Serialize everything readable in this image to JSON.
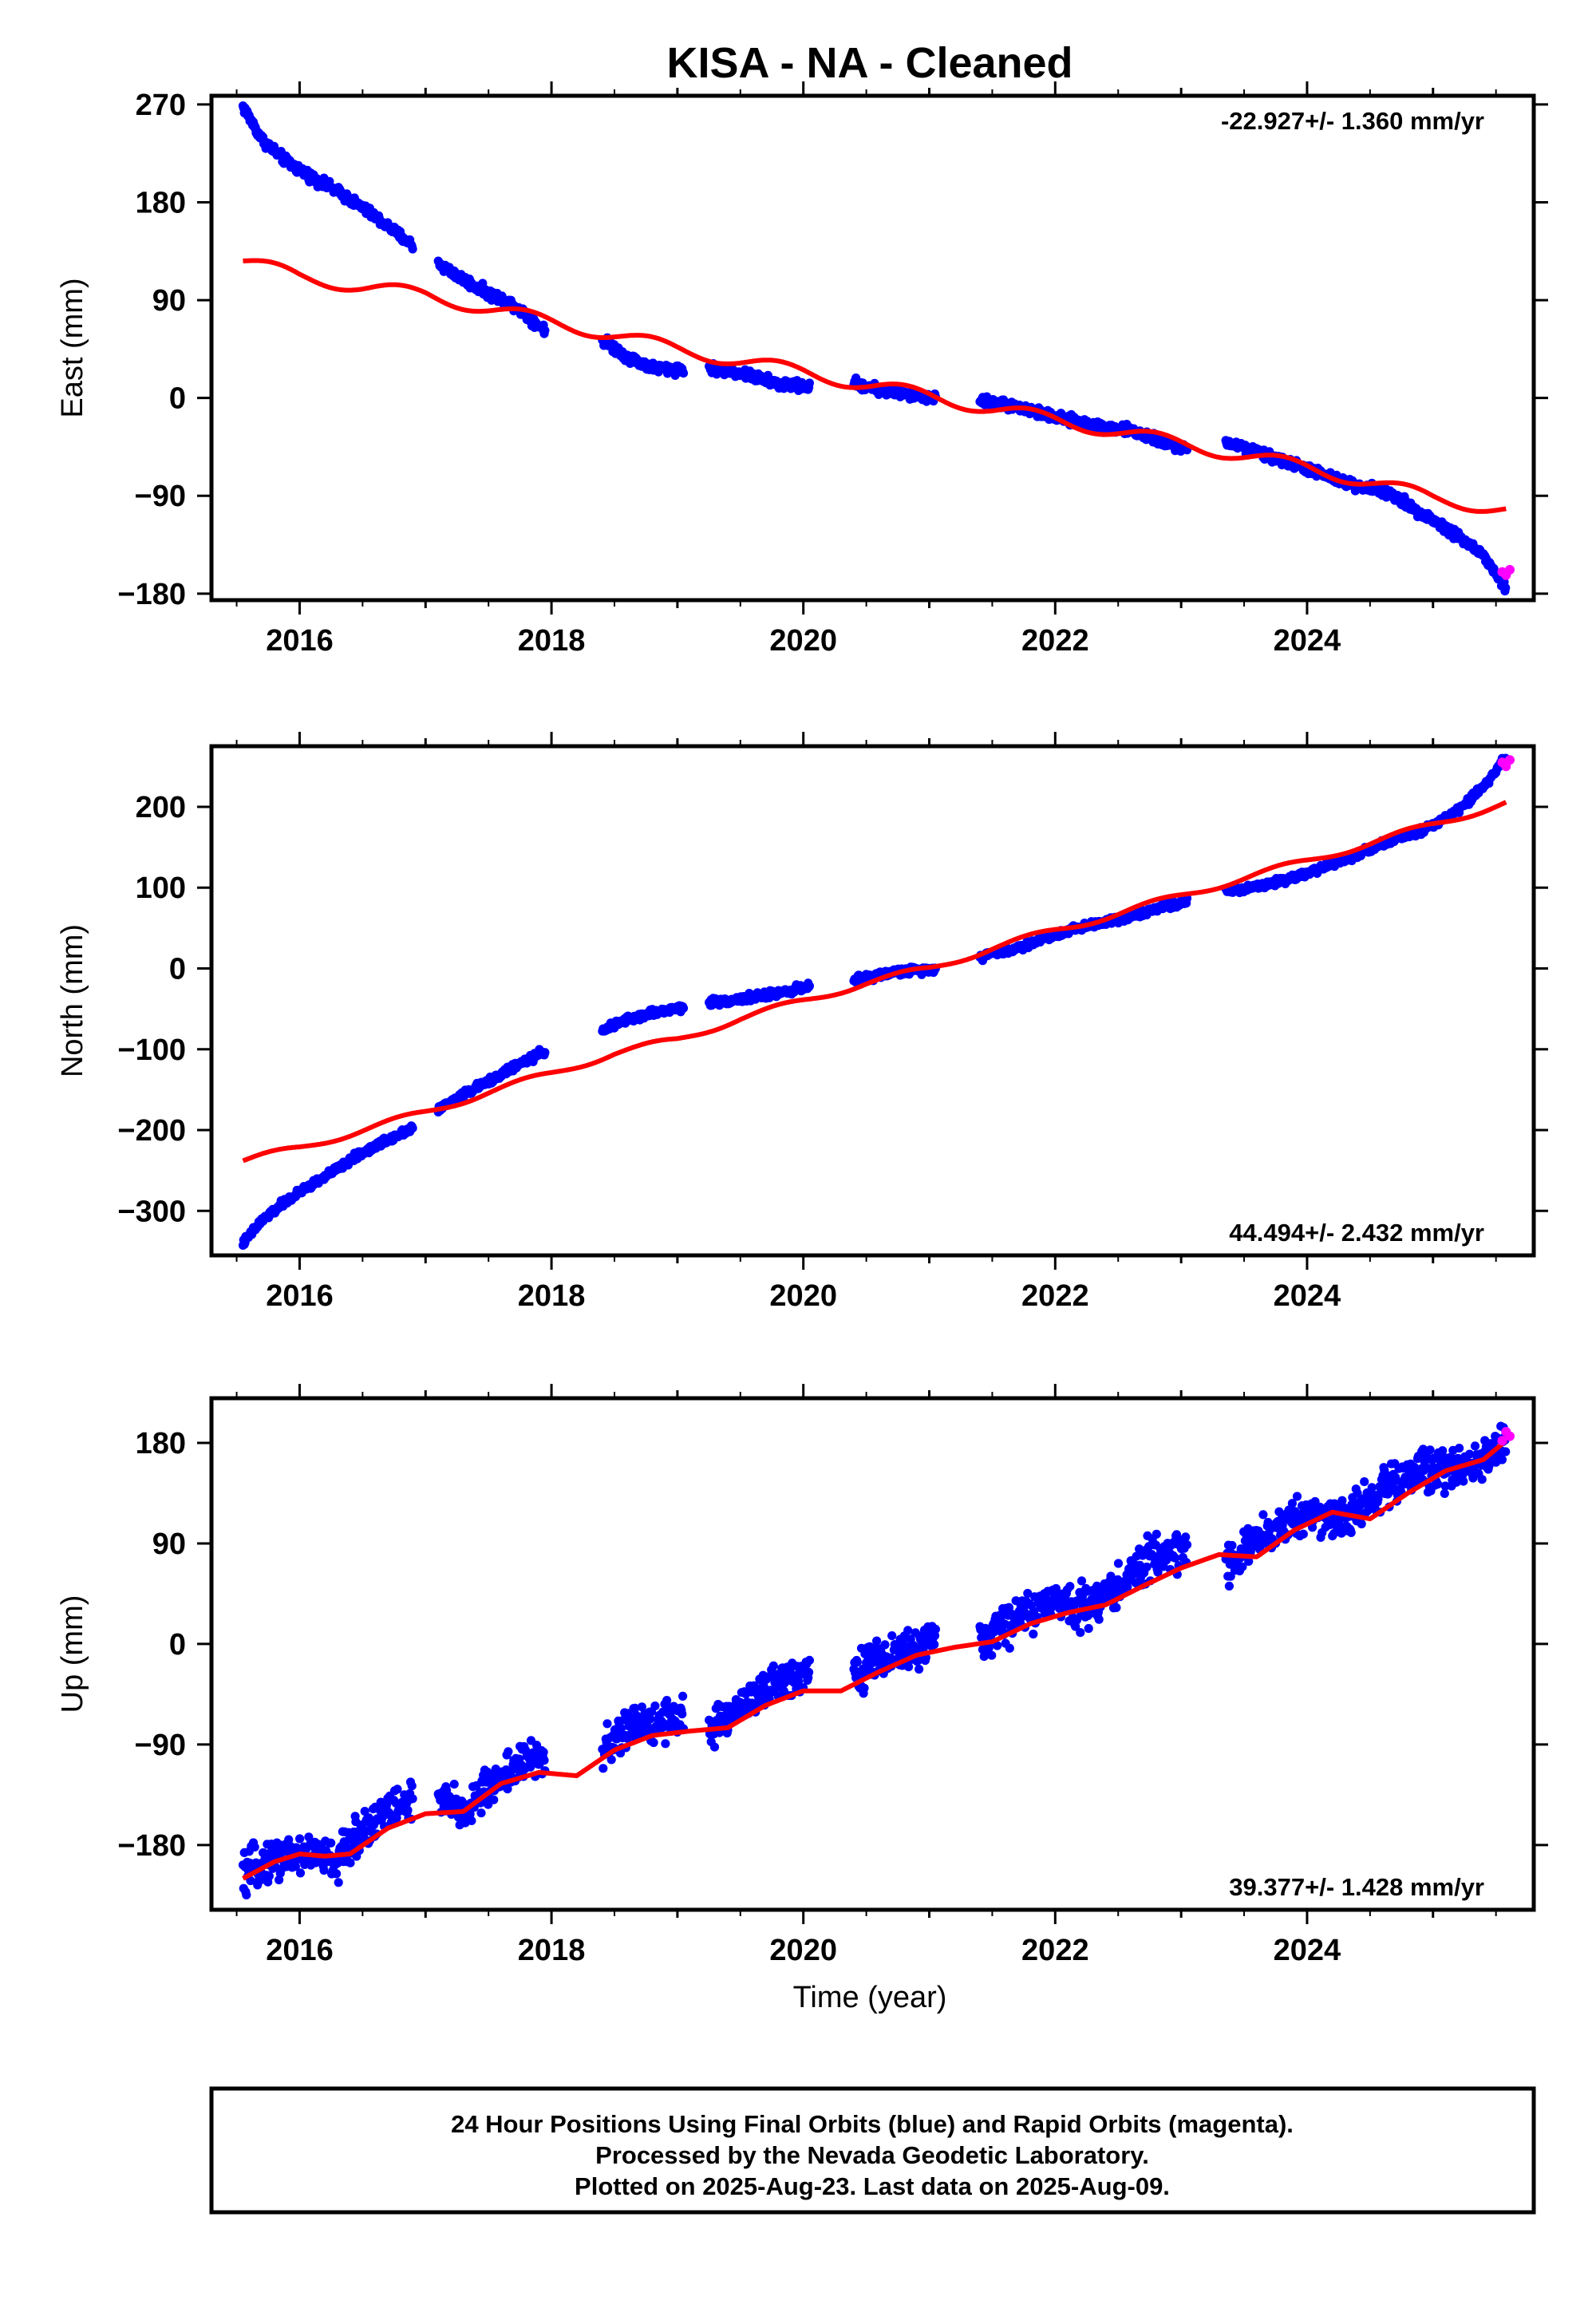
{
  "title": "KISA  - NA - Cleaned",
  "xlabel": "Time (year)",
  "footer": {
    "line1": "24 Hour Positions Using Final Orbits (blue) and Rapid Orbits (magenta).",
    "line2": "Processed by the Nevada Geodetic Laboratory.",
    "line3": "Plotted on 2025-Aug-23. Last data on 2025-Aug-09."
  },
  "colors": {
    "final_orbits": "#0000ff",
    "rapid_orbits": "#ff00ff",
    "model": "#ff0000"
  },
  "chart_data": [
    {
      "type": "scatter",
      "component": "east",
      "ylabel": "East (mm)",
      "rate_label": "-22.927+/- 1.360 mm/yr",
      "xlim": [
        2015.3,
        2025.8
      ],
      "ylim": [
        -186,
        278
      ],
      "xticks": [
        2016,
        2018,
        2020,
        2022,
        2024
      ],
      "yticks": [
        270,
        180,
        90,
        0,
        -90,
        -180
      ],
      "ytick_labels": [
        "270",
        "180",
        "90",
        "0",
        "−90",
        "−180"
      ],
      "final_orbits": {
        "gaps": [
          [
            2016.9,
            2017.1
          ],
          [
            2017.95,
            2018.4
          ],
          [
            2019.05,
            2019.25
          ],
          [
            2020.05,
            2020.4
          ],
          [
            2021.05,
            2021.4
          ],
          [
            2023.05,
            2023.35
          ]
        ],
        "x": [
          2015.55,
          2015.7,
          2015.9,
          2016.1,
          2016.3,
          2016.5,
          2016.7,
          2016.9,
          2017.1,
          2017.3,
          2017.5,
          2017.7,
          2017.95,
          2018.4,
          2018.6,
          2018.8,
          2019.05,
          2019.25,
          2019.5,
          2019.8,
          2020.05,
          2020.4,
          2020.7,
          2021.05,
          2021.4,
          2021.7,
          2022.0,
          2022.3,
          2022.6,
          2022.8,
          2023.05,
          2023.35,
          2023.7,
          2024.0,
          2024.3,
          2024.6,
          2024.9,
          2025.2,
          2025.4,
          2025.58
        ],
        "y": [
          268,
          238,
          217,
          203,
          190,
          175,
          158,
          140,
          124,
          109,
          96,
          86,
          62,
          54,
          38,
          28,
          26,
          28,
          23,
          13,
          10,
          14,
          5,
          0,
          -2,
          -8,
          -18,
          -25,
          -30,
          -38,
          -48,
          -40,
          -54,
          -65,
          -78,
          -85,
          -105,
          -127,
          -145,
          -176
        ]
      },
      "rapid_orbits": {
        "x": [
          2025.55,
          2025.58,
          2025.61
        ],
        "y": [
          -160,
          -163,
          -158
        ]
      },
      "model": {
        "x": [
          2015.55,
          2016.0,
          2016.5,
          2017.0,
          2017.5,
          2018.0,
          2018.5,
          2019.0,
          2019.5,
          2020.0,
          2020.5,
          2021.0,
          2021.5,
          2022.0,
          2022.5,
          2023.0,
          2023.5,
          2024.0,
          2024.5,
          2025.0,
          2025.58
        ],
        "y": [
          126,
          112,
          102,
          95,
          82,
          70,
          58,
          45,
          34,
          24,
          12,
          2,
          -10,
          -20,
          -31,
          -42,
          -53,
          -64,
          -77,
          -92,
          -103
        ]
      }
    },
    {
      "type": "scatter",
      "component": "north",
      "ylabel": "North (mm)",
      "rate_label": "44.494+/- 2.432 mm/yr",
      "xlim": [
        2015.3,
        2025.8
      ],
      "ylim": [
        -355,
        275
      ],
      "xticks": [
        2016,
        2018,
        2020,
        2022,
        2024
      ],
      "yticks": [
        200,
        100,
        0,
        -100,
        -200,
        -300
      ],
      "ytick_labels": [
        "200",
        "100",
        "0",
        "−100",
        "−200",
        "−300"
      ],
      "final_orbits": {
        "gaps": [
          [
            2016.9,
            2017.1
          ],
          [
            2017.95,
            2018.4
          ],
          [
            2019.05,
            2019.25
          ],
          [
            2020.05,
            2020.4
          ],
          [
            2021.05,
            2021.4
          ],
          [
            2023.05,
            2023.35
          ]
        ],
        "x": [
          2015.55,
          2015.7,
          2015.9,
          2016.1,
          2016.3,
          2016.5,
          2016.7,
          2016.9,
          2017.1,
          2017.3,
          2017.5,
          2017.7,
          2017.95,
          2018.4,
          2018.6,
          2018.8,
          2019.05,
          2019.25,
          2019.5,
          2019.8,
          2020.05,
          2020.4,
          2020.7,
          2021.05,
          2021.4,
          2021.7,
          2022.0,
          2022.3,
          2022.6,
          2022.8,
          2023.05,
          2023.35,
          2023.7,
          2024.0,
          2024.3,
          2024.6,
          2024.9,
          2025.2,
          2025.4,
          2025.58
        ],
        "y": [
          -340,
          -312,
          -287,
          -267,
          -248,
          -228,
          -212,
          -196,
          -175,
          -156,
          -140,
          -122,
          -102,
          -76,
          -64,
          -55,
          -48,
          -42,
          -38,
          -30,
          -22,
          -15,
          -5,
          0,
          15,
          25,
          42,
          55,
          65,
          75,
          82,
          95,
          105,
          118,
          135,
          155,
          170,
          195,
          225,
          262
        ]
      },
      "rapid_orbits": {
        "x": [
          2025.55,
          2025.58,
          2025.61
        ],
        "y": [
          255,
          250,
          258
        ]
      },
      "model": {
        "x": [
          2015.55,
          2016.0,
          2016.5,
          2017.0,
          2017.5,
          2018.0,
          2018.5,
          2019.0,
          2019.5,
          2020.0,
          2020.5,
          2021.0,
          2021.5,
          2022.0,
          2022.5,
          2023.0,
          2023.5,
          2024.0,
          2024.5,
          2025.0,
          2025.58
        ],
        "y": [
          -238,
          -222,
          -200,
          -178,
          -153,
          -130,
          -105,
          -88,
          -62,
          -40,
          -18,
          0,
          25,
          47,
          68,
          90,
          112,
          133,
          155,
          178,
          205
        ]
      }
    },
    {
      "type": "scatter",
      "component": "up",
      "ylabel": "Up (mm)",
      "rate_label": "39.377+/- 1.428 mm/yr",
      "xlim": [
        2015.3,
        2025.8
      ],
      "ylim": [
        -238,
        220
      ],
      "xticks": [
        2016,
        2018,
        2020,
        2022,
        2024
      ],
      "yticks": [
        180,
        90,
        0,
        -90,
        -180
      ],
      "ytick_labels": [
        "180",
        "90",
        "0",
        "−90",
        "−180"
      ],
      "final_orbits": {
        "gaps": [
          [
            2016.9,
            2017.1
          ],
          [
            2017.95,
            2018.4
          ],
          [
            2019.05,
            2019.25
          ],
          [
            2020.05,
            2020.4
          ],
          [
            2021.05,
            2021.4
          ],
          [
            2023.05,
            2023.35
          ]
        ],
        "x": [
          2015.55,
          2015.7,
          2015.9,
          2016.1,
          2016.3,
          2016.5,
          2016.7,
          2016.9,
          2017.1,
          2017.3,
          2017.5,
          2017.7,
          2017.95,
          2018.4,
          2018.6,
          2018.8,
          2019.05,
          2019.25,
          2019.5,
          2019.8,
          2020.05,
          2020.4,
          2020.7,
          2021.05,
          2021.4,
          2021.7,
          2022.0,
          2022.3,
          2022.6,
          2022.8,
          2023.05,
          2023.35,
          2023.7,
          2024.0,
          2024.3,
          2024.6,
          2024.9,
          2025.2,
          2025.4,
          2025.58
        ],
        "y": [
          -210,
          -195,
          -190,
          -188,
          -195,
          -165,
          -150,
          -140,
          -140,
          -150,
          -128,
          -110,
          -100,
          -100,
          -75,
          -70,
          -62,
          -80,
          -55,
          -35,
          -20,
          -25,
          -10,
          0,
          2,
          25,
          38,
          35,
          60,
          80,
          85,
          72,
          100,
          118,
          110,
          140,
          155,
          160,
          165,
          185
        ]
      },
      "rapid_orbits": {
        "x": [
          2025.55,
          2025.58,
          2025.61
        ],
        "y": [
          182,
          190,
          186
        ]
      },
      "model": {
        "x": [
          2015.55,
          2015.8,
          2016.0,
          2016.2,
          2016.4,
          2016.7,
          2017.0,
          2017.3,
          2017.6,
          2017.9,
          2018.2,
          2018.5,
          2018.8,
          2019.1,
          2019.4,
          2019.7,
          2020.0,
          2020.3,
          2020.6,
          2020.9,
          2021.2,
          2021.5,
          2021.8,
          2022.1,
          2022.4,
          2022.7,
          2023.0,
          2023.3,
          2023.6,
          2023.9,
          2024.2,
          2024.5,
          2024.8,
          2025.1,
          2025.4,
          2025.58
        ],
        "y": [
          -210,
          -195,
          -188,
          -190,
          -188,
          -165,
          -152,
          -150,
          -125,
          -115,
          -118,
          -95,
          -82,
          -78,
          -75,
          -55,
          -42,
          -42,
          -25,
          -10,
          -3,
          2,
          18,
          28,
          35,
          52,
          68,
          80,
          78,
          102,
          118,
          112,
          135,
          155,
          165,
          182
        ]
      }
    }
  ]
}
